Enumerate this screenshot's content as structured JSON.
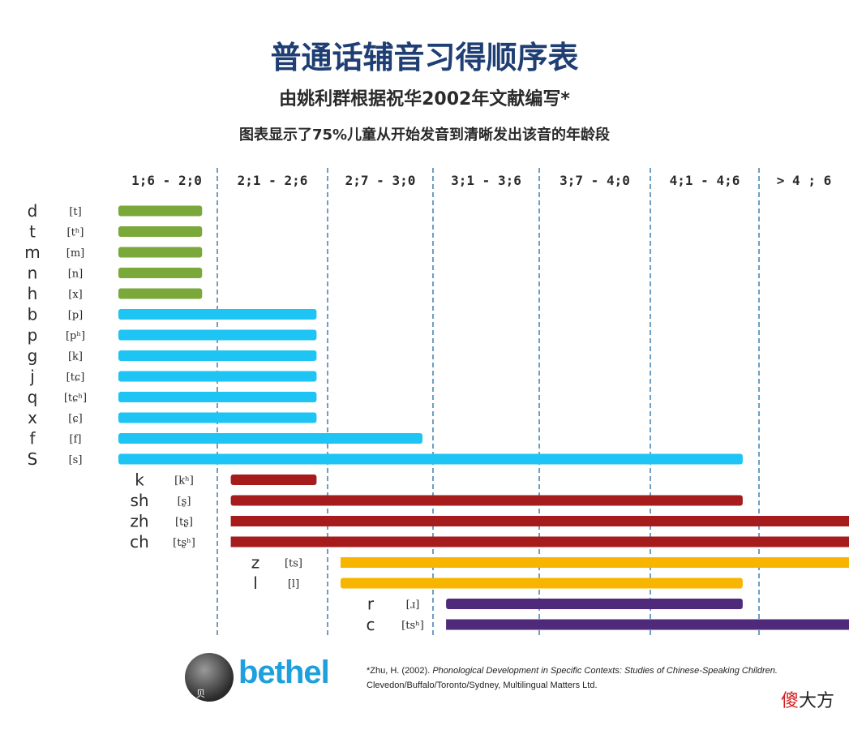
{
  "title": "普通话辅音习得顺序表",
  "subtitle": "由姚利群根据祝华2002年文献编写*",
  "description": "图表显示了75%儿童从开始发音到清晰发出该音的年龄段",
  "chart_data": {
    "type": "bar",
    "orientation": "horizontal-range",
    "age_bands": [
      "1;6 - 2;0",
      "2;1 - 2;6",
      "2;7 - 3;0",
      "3;1 - 3;6",
      "3;7 - 4;0",
      "4;1 - 4;6",
      ">     4 ; 6"
    ],
    "grid": "dashed vertical band separators",
    "note": "bars run from the band where sounds begin to appear to the band where 75% of children pronounce them clearly",
    "series": [
      {
        "color": "#7aa83a",
        "group": 1,
        "items": [
          {
            "label": "d",
            "ipa": "[t]",
            "start_band": 0,
            "end_band": 0.85
          },
          {
            "label": "t",
            "ipa": "[tʰ]",
            "start_band": 0,
            "end_band": 0.85
          },
          {
            "label": "m",
            "ipa": "[m]",
            "start_band": 0,
            "end_band": 0.85
          },
          {
            "label": "n",
            "ipa": "[n]",
            "start_band": 0,
            "end_band": 0.85
          },
          {
            "label": "h",
            "ipa": "[x]",
            "start_band": 0,
            "end_band": 0.85
          }
        ]
      },
      {
        "color": "#1ec4f4",
        "group": 1,
        "items": [
          {
            "label": "b",
            "ipa": "[p]",
            "start_band": 0,
            "end_band": 1.9
          },
          {
            "label": "p",
            "ipa": "[pʰ]",
            "start_band": 0,
            "end_band": 1.9
          },
          {
            "label": "g",
            "ipa": "[k]",
            "start_band": 0,
            "end_band": 1.9
          },
          {
            "label": "j",
            "ipa": "[tɕ]",
            "start_band": 0,
            "end_band": 1.9
          },
          {
            "label": "q",
            "ipa": "[tɕʰ]",
            "start_band": 0,
            "end_band": 1.9
          },
          {
            "label": "x",
            "ipa": "[ɕ]",
            "start_band": 0,
            "end_band": 1.9
          },
          {
            "label": "f",
            "ipa": "[f]",
            "start_band": 0,
            "end_band": 2.9
          },
          {
            "label": "S",
            "ipa": "[s]",
            "start_band": 0,
            "end_band": 5.85
          }
        ]
      },
      {
        "color": "#a61c1c",
        "group": 2,
        "items": [
          {
            "label": "k",
            "ipa": "[kʰ]",
            "start_band": 1.1,
            "end_band": 1.9
          },
          {
            "label": "sh",
            "ipa": "[ʂ]",
            "start_band": 1.1,
            "end_band": 5.85
          },
          {
            "label": "zh",
            "ipa": "[tʂ]",
            "start_band": 1.1,
            "end_band": 7
          },
          {
            "label": "ch",
            "ipa": "[tʂʰ]",
            "start_band": 1.1,
            "end_band": 7
          }
        ]
      },
      {
        "color": "#f7b500",
        "group": 3,
        "items": [
          {
            "label": "z",
            "ipa": "[ts]",
            "start_band": 2.1,
            "end_band": 7
          },
          {
            "label": "l",
            "ipa": "[l]",
            "start_band": 2.1,
            "end_band": 5.85
          }
        ]
      },
      {
        "color": "#4f2a7a",
        "group": 4,
        "items": [
          {
            "label": "r",
            "ipa": "[ɹ]",
            "start_band": 3.1,
            "end_band": 5.85
          },
          {
            "label": "c",
            "ipa": "[tsʰ]",
            "start_band": 3.1,
            "end_band": 7
          }
        ]
      }
    ]
  },
  "footer": {
    "logo_text": "bethel",
    "logo_badge": "贝泰",
    "reference_prefix": "*Zhu, H. (2002). ",
    "reference_title": "Phonological Development in Specific Contexts: Studies of Chinese-Speaking Children.",
    "reference_publisher": "Clevedon/Buffalo/Toronto/Sydney, Multilingual Matters Ltd."
  },
  "watermark": {
    "part1": "傻",
    "part2": "大方"
  }
}
